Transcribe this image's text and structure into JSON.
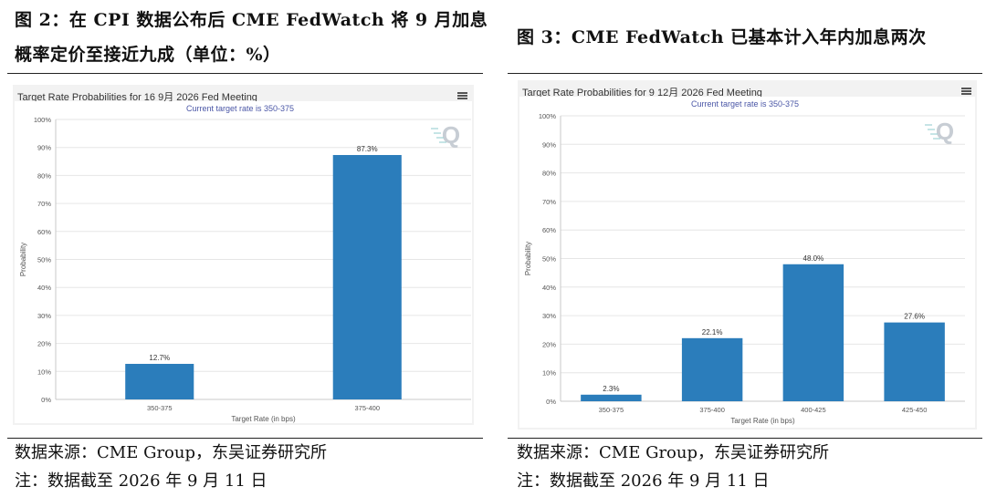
{
  "figure2": {
    "title_line1": "图 2：在 CPI 数据公布后 CME FedWatch 将 9 月加息",
    "title_line2": "概率定价至接近九成（单位：%）",
    "chart_header": "Target Rate Probabilities for 16 9月 2026 Fed Meeting",
    "chart_subtitle": "Current target rate is 350-375",
    "source": "数据来源：CME Group，东吴证券研究所",
    "note": "注：数据截至 2026 年 9 月 11 日"
  },
  "figure3": {
    "title": "图 3：CME FedWatch 已基本计入年内加息两次",
    "chart_header": "Target Rate Probabilities for 9 12月 2026 Fed Meeting",
    "chart_subtitle": "Current target rate is 350-375",
    "source": "数据来源：CME Group，东吴证券研究所",
    "note": "注：数据截至 2026 年 9 月 11 日"
  },
  "watermark": "Q",
  "colors": {
    "bar": "#2b7dbb",
    "grid": "#e6e6e6",
    "subtitle": "#4a56a6"
  },
  "chart_data": [
    {
      "type": "bar",
      "title": "Target Rate Probabilities for 16 9月 2026 Fed Meeting",
      "subtitle": "Current target rate is 350-375",
      "categories": [
        "350-375",
        "375-400"
      ],
      "values": [
        12.7,
        87.3
      ],
      "value_labels": [
        "12.7%",
        "87.3%"
      ],
      "xlabel": "Target Rate (in bps)",
      "ylabel": "Probability",
      "ylim": [
        0,
        100
      ],
      "yticks": [
        "0%",
        "10%",
        "20%",
        "30%",
        "40%",
        "50%",
        "60%",
        "70%",
        "80%",
        "90%",
        "100%"
      ],
      "grid": true,
      "legend": "none"
    },
    {
      "type": "bar",
      "title": "Target Rate Probabilities for 9 12月 2026 Fed Meeting",
      "subtitle": "Current target rate is 350-375",
      "categories": [
        "350-375",
        "375-400",
        "400-425",
        "425-450"
      ],
      "values": [
        2.3,
        22.1,
        48.0,
        27.6
      ],
      "value_labels": [
        "2.3%",
        "22.1%",
        "48.0%",
        "27.6%"
      ],
      "xlabel": "Target Rate (in bps)",
      "ylabel": "Probability",
      "ylim": [
        0,
        100
      ],
      "yticks": [
        "0%",
        "10%",
        "20%",
        "30%",
        "40%",
        "50%",
        "60%",
        "70%",
        "80%",
        "90%",
        "100%"
      ],
      "grid": true,
      "legend": "none"
    }
  ]
}
